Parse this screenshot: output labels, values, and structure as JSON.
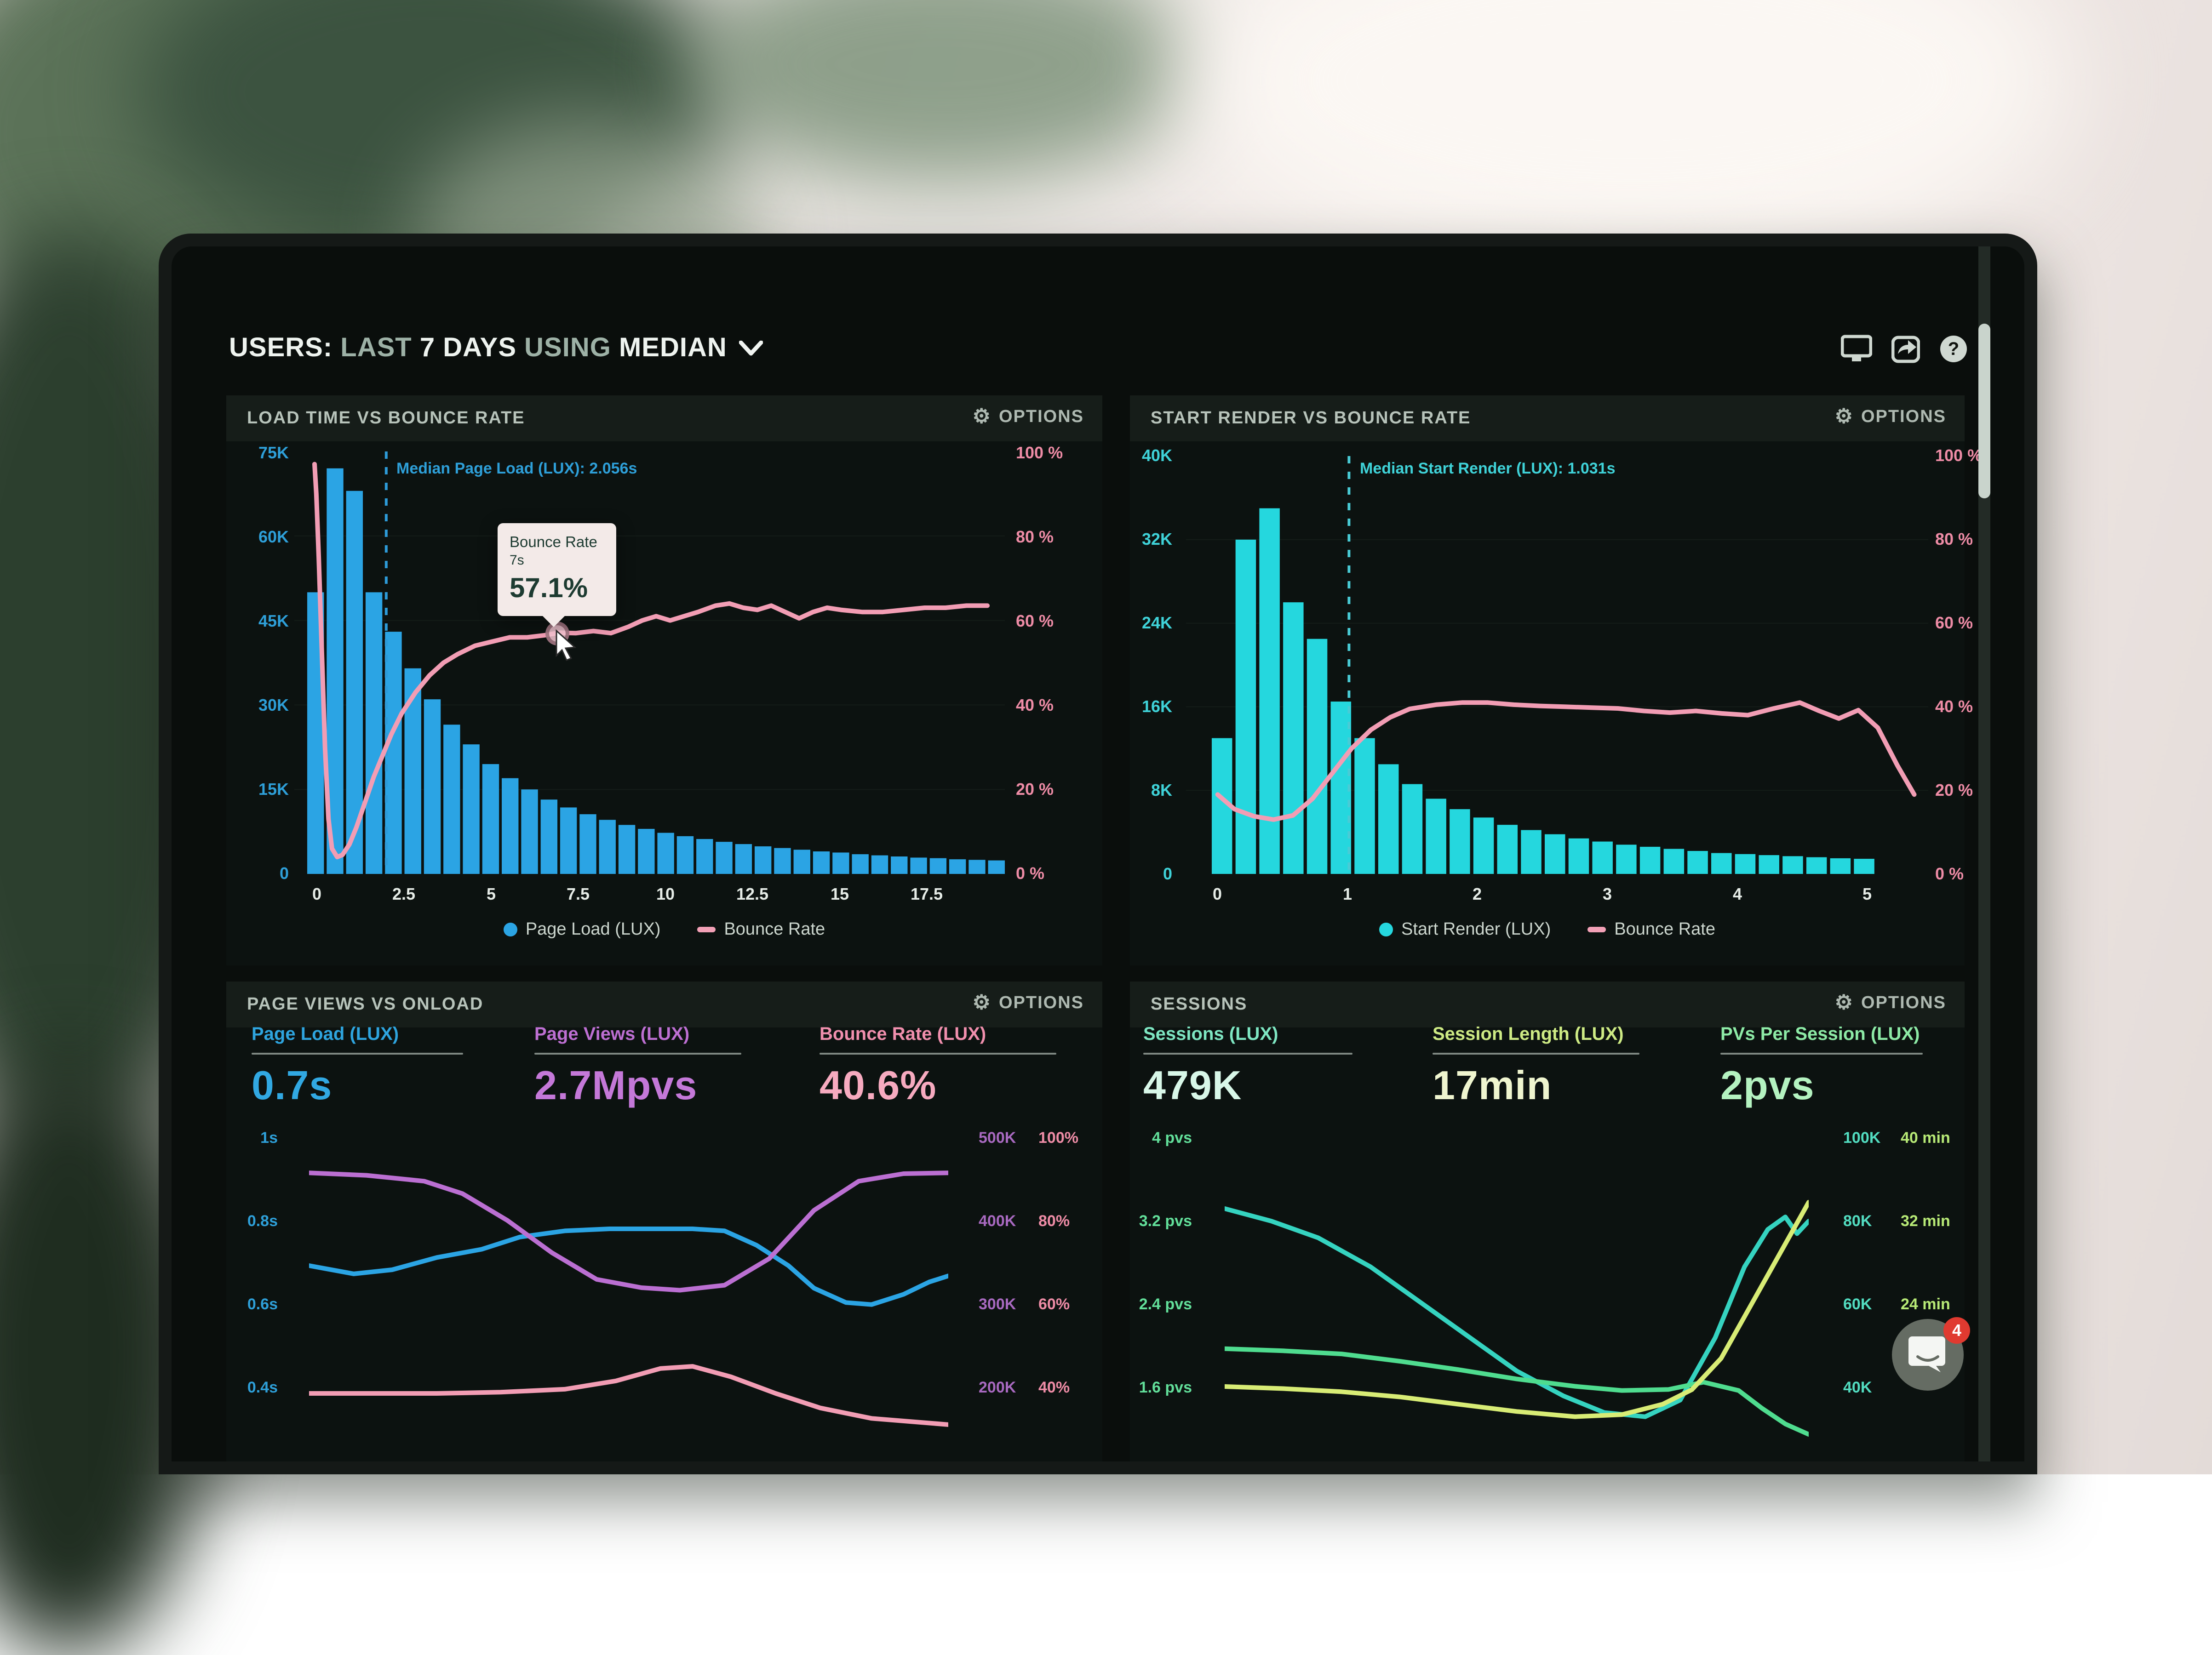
{
  "header": {
    "users": "USERS:",
    "last": " LAST ",
    "days": "7 DAYS",
    "using": " USING ",
    "median": "MEDIAN"
  },
  "panels": {
    "p1": {
      "title": "LOAD TIME VS BOUNCE RATE",
      "options_label": "OPTIONS",
      "median_note": "Median Page Load (LUX): 2.056s",
      "y_left": [
        "75K",
        "60K",
        "45K",
        "30K",
        "15K",
        "0"
      ],
      "y_right": [
        "100 %",
        "80 %",
        "60 %",
        "40 %",
        "20 %",
        "0 %"
      ],
      "x_ticks": [
        "0",
        "2.5",
        "5",
        "7.5",
        "10",
        "12.5",
        "15",
        "17.5"
      ],
      "legend_bars": "Page Load (LUX)",
      "legend_line": "Bounce Rate",
      "tooltip": {
        "title": "Bounce Rate",
        "sub": "7s",
        "value": "57.1%"
      }
    },
    "p2": {
      "title": "START RENDER VS BOUNCE RATE",
      "options_label": "OPTIONS",
      "median_note": "Median Start Render (LUX): 1.031s",
      "y_left": [
        "40K",
        "32K",
        "24K",
        "16K",
        "8K",
        "0"
      ],
      "y_right": [
        "100 %",
        "80 %",
        "60 %",
        "40 %",
        "20 %",
        "0 %"
      ],
      "x_ticks": [
        "0",
        "1",
        "2",
        "3",
        "4",
        "5"
      ],
      "legend_bars": "Start Render (LUX)",
      "legend_line": "Bounce Rate"
    },
    "p3": {
      "title": "PAGE VIEWS VS ONLOAD",
      "options_label": "OPTIONS",
      "metrics": [
        {
          "label": "Page Load (LUX)",
          "value": "0.7s"
        },
        {
          "label": "Page Views (LUX)",
          "value": "2.7Mpvs"
        },
        {
          "label": "Bounce Rate (LUX)",
          "value": "40.6%"
        }
      ],
      "y_left": [
        "1s",
        "0.8s",
        "0.6s",
        "0.4s"
      ],
      "y_right_k": [
        "500K",
        "400K",
        "300K",
        "200K"
      ],
      "y_right_pct": [
        "100%",
        "80%",
        "60%",
        "40%"
      ]
    },
    "p4": {
      "title": "SESSIONS",
      "options_label": "OPTIONS",
      "metrics": [
        {
          "label": "Sessions (LUX)",
          "value": "479K"
        },
        {
          "label": "Session Length (LUX)",
          "value": "17min"
        },
        {
          "label": "PVs Per Session (LUX)",
          "value": "2pvs"
        }
      ],
      "y_left": [
        "4 pvs",
        "3.2 pvs",
        "2.4 pvs",
        "1.6 pvs"
      ],
      "y_right_k": [
        "100K",
        "80K",
        "60K",
        "40K"
      ],
      "y_right_min": [
        "40 min",
        "32 min",
        "24 min",
        ""
      ]
    }
  },
  "chat": {
    "badge": "4"
  },
  "colors": {
    "bar_blue": "#2ba4e4",
    "bar_cyan": "#25d7de",
    "line_pink": "#f29db4",
    "purple": "#bb6fd2",
    "mint": "#7ee6c2",
    "yellow_green": "#cdea84",
    "green": "#8deaa6"
  },
  "chart_data": {
    "p1": {
      "type": "bar+line",
      "x_min": -0.58,
      "x_max": 19.8,
      "bars_max": 75,
      "bar_start": -0.21,
      "bar_pitch": 0.558,
      "bar_color": "#2ba4e4",
      "grid_rows": 5,
      "grid_color": "#141c18",
      "median_x": 2.056,
      "median_color": "#2d9bd8",
      "bars": [
        50,
        72,
        68,
        50,
        43,
        36.5,
        31,
        26.5,
        23,
        19.5,
        17,
        15,
        13.2,
        11.8,
        10.6,
        9.6,
        8.7,
        8,
        7.3,
        6.7,
        6.2,
        5.7,
        5.3,
        4.9,
        4.6,
        4.3,
        4,
        3.8,
        3.5,
        3.3,
        3.1,
        2.9,
        2.8,
        2.6,
        2.5,
        2.4
      ],
      "lines": [
        {
          "color": "#f29db4",
          "width": 10,
          "min": 0,
          "max": 100,
          "points": [
            [
              0,
              97
            ],
            [
              0.05,
              90
            ],
            [
              0.12,
              75
            ],
            [
              0.2,
              55
            ],
            [
              0.3,
              30
            ],
            [
              0.4,
              13
            ],
            [
              0.5,
              6
            ],
            [
              0.65,
              4
            ],
            [
              0.8,
              4.5
            ],
            [
              1,
              7
            ],
            [
              1.2,
              11
            ],
            [
              1.45,
              17
            ],
            [
              1.7,
              23
            ],
            [
              1.95,
              28
            ],
            [
              2.2,
              33
            ],
            [
              2.5,
              38
            ],
            [
              2.9,
              43
            ],
            [
              3.3,
              47
            ],
            [
              3.7,
              50
            ],
            [
              4.1,
              52
            ],
            [
              4.6,
              54
            ],
            [
              5.1,
              55
            ],
            [
              5.6,
              56
            ],
            [
              6.1,
              56
            ],
            [
              6.6,
              56.5
            ],
            [
              7,
              57.1
            ],
            [
              7.5,
              57
            ],
            [
              8,
              57.5
            ],
            [
              8.5,
              57
            ],
            [
              9,
              58.5
            ],
            [
              9.4,
              60
            ],
            [
              9.8,
              61
            ],
            [
              10.2,
              60
            ],
            [
              10.6,
              61
            ],
            [
              11,
              62
            ],
            [
              11.5,
              63.5
            ],
            [
              11.9,
              64
            ],
            [
              12.3,
              63
            ],
            [
              12.7,
              62.5
            ],
            [
              13.1,
              63.5
            ],
            [
              13.5,
              62
            ],
            [
              13.9,
              60.5
            ],
            [
              14.3,
              62
            ],
            [
              14.7,
              63
            ],
            [
              15.1,
              62.5
            ],
            [
              15.7,
              62
            ],
            [
              16.3,
              62
            ],
            [
              16.9,
              62.5
            ],
            [
              17.5,
              63
            ],
            [
              18.1,
              63
            ],
            [
              18.7,
              63.5
            ],
            [
              19.3,
              63.5
            ]
          ]
        }
      ]
    },
    "p2": {
      "type": "bar+line",
      "x_min": -0.223,
      "x_max": 5.488,
      "bars_max": 40,
      "bar_start": -0.025,
      "bar_pitch": 0.183,
      "bar_color": "#25d7de",
      "grid_rows": 5,
      "grid_color": "#141c18",
      "median_x": 1.031,
      "median_color": "#49ccd6",
      "bars": [
        13,
        32,
        35,
        26,
        22.5,
        16.5,
        13,
        10.5,
        8.6,
        7.2,
        6.2,
        5.4,
        4.7,
        4.2,
        3.8,
        3.4,
        3.1,
        2.8,
        2.6,
        2.4,
        2.2,
        2.0,
        1.9,
        1.8,
        1.7,
        1.6,
        1.5,
        1.45
      ],
      "lines": [
        {
          "color": "#f29db4",
          "width": 10,
          "min": 0,
          "max": 100,
          "points": [
            [
              0.02,
              19
            ],
            [
              0.15,
              15.5
            ],
            [
              0.3,
              13.8
            ],
            [
              0.45,
              13
            ],
            [
              0.6,
              14
            ],
            [
              0.75,
              18
            ],
            [
              0.9,
              24
            ],
            [
              1.05,
              30
            ],
            [
              1.2,
              34.5
            ],
            [
              1.35,
              37.5
            ],
            [
              1.5,
              39.5
            ],
            [
              1.7,
              40.5
            ],
            [
              1.9,
              41
            ],
            [
              2.1,
              41
            ],
            [
              2.3,
              40.5
            ],
            [
              2.5,
              40.2
            ],
            [
              2.7,
              40
            ],
            [
              2.9,
              39.8
            ],
            [
              3.1,
              39.6
            ],
            [
              3.3,
              39
            ],
            [
              3.5,
              38.6
            ],
            [
              3.7,
              39
            ],
            [
              3.9,
              38.4
            ],
            [
              4.1,
              38
            ],
            [
              4.3,
              39.6
            ],
            [
              4.5,
              41
            ],
            [
              4.65,
              39
            ],
            [
              4.8,
              37.2
            ],
            [
              4.95,
              39.2
            ],
            [
              5.1,
              35
            ],
            [
              5.25,
              26
            ],
            [
              5.38,
              19
            ]
          ]
        }
      ]
    },
    "p3": {
      "type": "line",
      "x_min": 0,
      "x_max": 1,
      "lines": [
        {
          "color": "#2ba4e4",
          "width": 10,
          "min": 0.27,
          "max": 1.0,
          "points": [
            [
              0,
              0.7
            ],
            [
              0.07,
              0.68
            ],
            [
              0.13,
              0.69
            ],
            [
              0.2,
              0.72
            ],
            [
              0.27,
              0.74
            ],
            [
              0.33,
              0.77
            ],
            [
              0.4,
              0.785
            ],
            [
              0.47,
              0.79
            ],
            [
              0.54,
              0.79
            ],
            [
              0.6,
              0.79
            ],
            [
              0.65,
              0.785
            ],
            [
              0.7,
              0.75
            ],
            [
              0.75,
              0.7
            ],
            [
              0.79,
              0.645
            ],
            [
              0.84,
              0.61
            ],
            [
              0.88,
              0.605
            ],
            [
              0.93,
              0.63
            ],
            [
              0.97,
              0.66
            ],
            [
              1,
              0.675
            ]
          ]
        },
        {
          "color": "#bb6fd2",
          "width": 10,
          "min": 147,
          "max": 506,
          "points": [
            [
              0,
              470
            ],
            [
              0.09,
              467
            ],
            [
              0.18,
              460
            ],
            [
              0.24,
              445
            ],
            [
              0.31,
              413
            ],
            [
              0.38,
              374
            ],
            [
              0.45,
              342
            ],
            [
              0.52,
              332
            ],
            [
              0.58,
              329
            ],
            [
              0.65,
              335
            ],
            [
              0.72,
              367
            ],
            [
              0.79,
              425
            ],
            [
              0.86,
              460
            ],
            [
              0.93,
              469
            ],
            [
              1,
              470
            ]
          ]
        },
        {
          "color": "#f29db4",
          "width": 10,
          "min": 29.4,
          "max": 101.2,
          "points": [
            [
              0,
              41
            ],
            [
              0.1,
              41
            ],
            [
              0.2,
              41
            ],
            [
              0.3,
              41.3
            ],
            [
              0.4,
              42
            ],
            [
              0.48,
              44
            ],
            [
              0.55,
              47
            ],
            [
              0.6,
              47.5
            ],
            [
              0.66,
              45
            ],
            [
              0.73,
              41
            ],
            [
              0.8,
              37.5
            ],
            [
              0.88,
              35
            ],
            [
              1,
              33.5
            ]
          ]
        }
      ]
    },
    "p4": {
      "type": "line",
      "x_min": 0,
      "x_max": 1,
      "lines": [
        {
          "color": "#35d3c0",
          "width": 10,
          "min": 30,
          "max": 101.8,
          "points": [
            [
              0,
              86
            ],
            [
              0.08,
              83
            ],
            [
              0.16,
              79
            ],
            [
              0.25,
              72
            ],
            [
              0.33,
              64
            ],
            [
              0.42,
              55
            ],
            [
              0.5,
              47
            ],
            [
              0.58,
              41
            ],
            [
              0.65,
              37
            ],
            [
              0.72,
              36
            ],
            [
              0.78,
              40
            ],
            [
              0.84,
              55
            ],
            [
              0.89,
              72
            ],
            [
              0.93,
              81
            ],
            [
              0.96,
              84
            ],
            [
              0.98,
              80
            ],
            [
              1,
              83
            ]
          ]
        },
        {
          "color": "#4fdc8f",
          "width": 10,
          "min": 1.13,
          "max": 3.99,
          "points": [
            [
              0,
              2.02
            ],
            [
              0.1,
              2.0
            ],
            [
              0.2,
              1.97
            ],
            [
              0.3,
              1.9
            ],
            [
              0.4,
              1.82
            ],
            [
              0.5,
              1.73
            ],
            [
              0.6,
              1.66
            ],
            [
              0.68,
              1.62
            ],
            [
              0.76,
              1.63
            ],
            [
              0.82,
              1.7
            ],
            [
              0.88,
              1.62
            ],
            [
              0.92,
              1.45
            ],
            [
              0.96,
              1.3
            ],
            [
              1,
              1.2
            ]
          ]
        },
        {
          "color": "#d8ec75",
          "width": 10,
          "min": 12,
          "max": 40.7,
          "points": [
            [
              0,
              17.3
            ],
            [
              0.1,
              17.1
            ],
            [
              0.2,
              16.8
            ],
            [
              0.3,
              16.3
            ],
            [
              0.4,
              15.6
            ],
            [
              0.5,
              14.9
            ],
            [
              0.6,
              14.4
            ],
            [
              0.68,
              14.6
            ],
            [
              0.75,
              15.6
            ],
            [
              0.8,
              17
            ],
            [
              0.85,
              20
            ],
            [
              0.9,
              25
            ],
            [
              0.95,
              30
            ],
            [
              1,
              35
            ]
          ]
        }
      ]
    }
  }
}
